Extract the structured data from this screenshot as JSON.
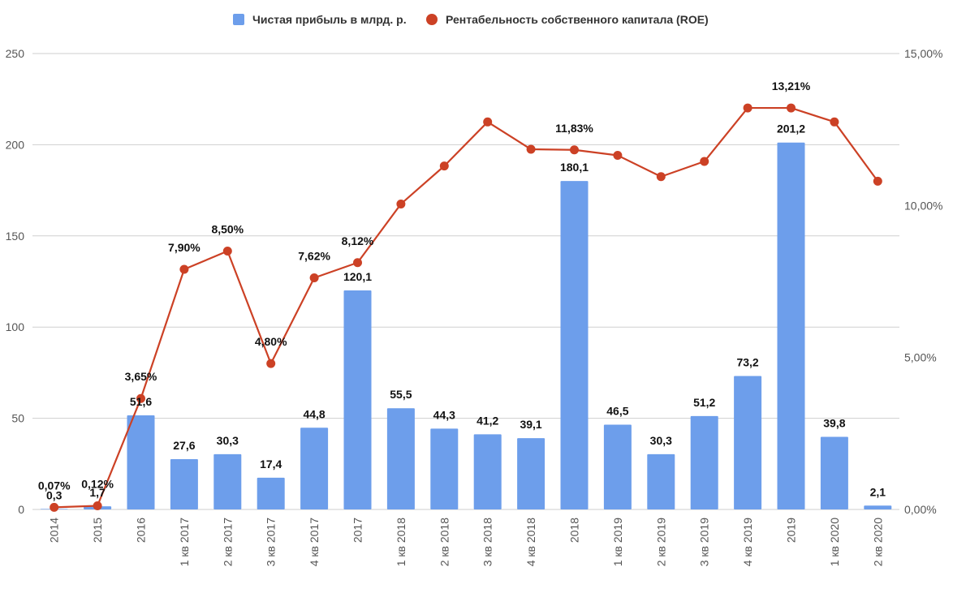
{
  "chart_data": {
    "type": "bar",
    "categories": [
      "2014",
      "2015",
      "2016",
      "1 кв 2017",
      "2 кв 2017",
      "3 кв 2017",
      "4 кв 2017",
      "2017",
      "1 кв 2018",
      "2 кв 2018",
      "3 кв 2018",
      "4 кв 2018",
      "2018",
      "1 кв 2019",
      "2 кв 2019",
      "3 кв 2019",
      "4 кв 2019",
      "2019",
      "1 кв 2020",
      "2 кв 2020"
    ],
    "series": [
      {
        "name": "Чистая прибыль в млрд. р.",
        "type": "bar",
        "axis": "left",
        "color": "#6d9eeb",
        "values": [
          0.3,
          1.7,
          51.6,
          27.6,
          30.3,
          17.4,
          44.8,
          120.1,
          55.5,
          44.3,
          41.2,
          39.1,
          180.1,
          46.5,
          30.3,
          51.2,
          73.2,
          201.2,
          39.8,
          2.1
        ],
        "labels": [
          "0,3",
          "1,7",
          "51,6",
          "27,6",
          "30,3",
          "17,4",
          "44,8",
          "120,1",
          "55,5",
          "44,3",
          "41,2",
          "39,1",
          "180,1",
          "46,5",
          "30,3",
          "51,2",
          "73,2",
          "201,2",
          "39,8",
          "2,1"
        ]
      },
      {
        "name": "Рентабельность собственного капитала (ROE)",
        "type": "line",
        "axis": "right",
        "color": "#cc4125",
        "values": [
          0.07,
          0.12,
          3.65,
          7.9,
          8.5,
          4.8,
          7.62,
          8.12,
          10.05,
          11.3,
          12.75,
          11.85,
          11.83,
          11.65,
          10.95,
          11.45,
          13.21,
          13.21,
          12.75,
          10.8
        ],
        "labels": [
          "0,07%",
          "0,12%",
          "3,65%",
          "7,90%",
          "8,50%",
          "4,80%",
          "7,62%",
          "8,12%",
          "",
          "",
          "",
          "",
          "11,83%",
          "",
          "",
          "",
          "",
          "13,21%",
          "",
          ""
        ]
      }
    ],
    "y_left": {
      "min": 0,
      "max": 250,
      "ticks": [
        "0",
        "50",
        "100",
        "150",
        "200",
        "250"
      ]
    },
    "y_right": {
      "min": 0,
      "max": 15,
      "ticks": [
        "0,00%",
        "5,00%",
        "10,00%",
        "15,00%"
      ]
    },
    "legend_position": "top-center",
    "grid": true
  }
}
